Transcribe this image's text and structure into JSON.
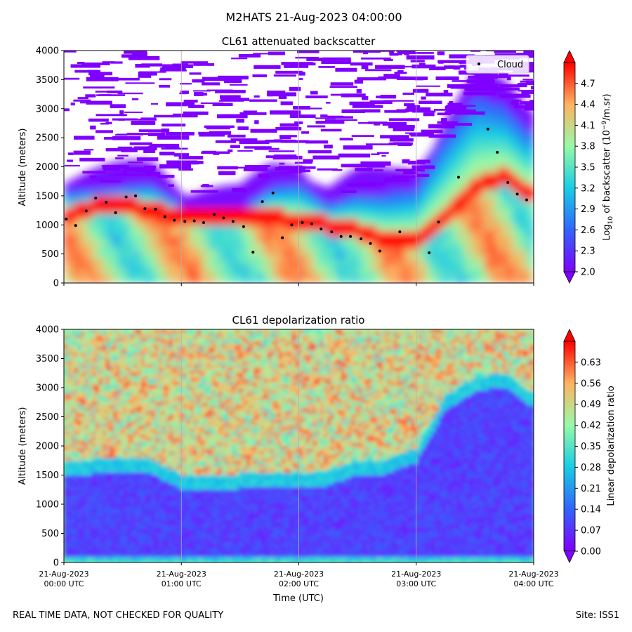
{
  "suptitle": "M2HATS 21-Aug-2023 04:00:00",
  "footer_left": "REAL TIME DATA, NOT CHECKED FOR QUALITY",
  "footer_right": "Site: ISS1",
  "chart_data": [
    {
      "type": "heatmap",
      "title": "CL61 attenuated backscatter",
      "ylabel": "Altitude (meters)",
      "ylim": [
        0,
        4000
      ],
      "yticks": [
        0,
        500,
        1000,
        1500,
        2000,
        2500,
        3000,
        3500,
        4000
      ],
      "xlim_hours": [
        0,
        4
      ],
      "x_tick_labels": [
        [
          "21-Aug-2023",
          "00:00 UTC"
        ],
        [
          "21-Aug-2023",
          "01:00 UTC"
        ],
        [
          "21-Aug-2023",
          "02:00 UTC"
        ],
        [
          "21-Aug-2023",
          "03:00 UTC"
        ],
        [
          "21-Aug-2023",
          "04:00 UTC"
        ]
      ],
      "grid": "vertical lines at hourly ticks",
      "colormap": "rainbow",
      "colorbar": {
        "label": "Log10 of backscatter (10^-9/m.sr)",
        "label_parts": [
          "Log",
          "10",
          " of backscatter (10",
          "−9",
          "/m.sr)"
        ],
        "range": [
          2.0,
          5.0
        ],
        "ticks": [
          "2.0",
          "2.3",
          "2.6",
          "2.9",
          "3.2",
          "3.5",
          "3.8",
          "4.1",
          "4.4",
          "4.7"
        ],
        "tick_values": [
          2.0,
          2.3,
          2.6,
          2.9,
          3.2,
          3.5,
          3.8,
          4.1,
          4.4,
          4.7
        ]
      },
      "legend": {
        "label": "Cloud",
        "placement": "top-right",
        "marker_color": "#000000"
      },
      "cloud_points": [
        {
          "hours": 0.02,
          "alt": 1100
        },
        {
          "hours": 0.1,
          "alt": 990
        },
        {
          "hours": 0.19,
          "alt": 1240
        },
        {
          "hours": 0.27,
          "alt": 1460
        },
        {
          "hours": 0.36,
          "alt": 1390
        },
        {
          "hours": 0.44,
          "alt": 1210
        },
        {
          "hours": 0.53,
          "alt": 1480
        },
        {
          "hours": 0.61,
          "alt": 1500
        },
        {
          "hours": 0.69,
          "alt": 1280
        },
        {
          "hours": 0.78,
          "alt": 1270
        },
        {
          "hours": 0.86,
          "alt": 1140
        },
        {
          "hours": 0.94,
          "alt": 1080
        },
        {
          "hours": 1.03,
          "alt": 1060
        },
        {
          "hours": 1.11,
          "alt": 1070
        },
        {
          "hours": 1.19,
          "alt": 1040
        },
        {
          "hours": 1.28,
          "alt": 1180
        },
        {
          "hours": 1.36,
          "alt": 1120
        },
        {
          "hours": 1.44,
          "alt": 1060
        },
        {
          "hours": 1.53,
          "alt": 970
        },
        {
          "hours": 1.61,
          "alt": 530
        },
        {
          "hours": 1.69,
          "alt": 1400
        },
        {
          "hours": 1.78,
          "alt": 1550
        },
        {
          "hours": 1.86,
          "alt": 780
        },
        {
          "hours": 1.94,
          "alt": 1000
        },
        {
          "hours": 2.03,
          "alt": 1040
        },
        {
          "hours": 2.11,
          "alt": 1020
        },
        {
          "hours": 2.19,
          "alt": 930
        },
        {
          "hours": 2.28,
          "alt": 880
        },
        {
          "hours": 2.36,
          "alt": 800
        },
        {
          "hours": 2.44,
          "alt": 800
        },
        {
          "hours": 2.53,
          "alt": 760
        },
        {
          "hours": 2.61,
          "alt": 680
        },
        {
          "hours": 2.69,
          "alt": 550
        },
        {
          "hours": 2.86,
          "alt": 880
        },
        {
          "hours": 3.11,
          "alt": 520
        },
        {
          "hours": 3.19,
          "alt": 1050
        },
        {
          "hours": 3.36,
          "alt": 1820
        },
        {
          "hours": 3.61,
          "alt": 2650
        },
        {
          "hours": 3.69,
          "alt": 2250
        },
        {
          "hours": 3.78,
          "alt": 1730
        },
        {
          "hours": 3.86,
          "alt": 1530
        },
        {
          "hours": 3.94,
          "alt": 1430
        }
      ],
      "layers": [
        {
          "name": "boundary layer top (approx. m)",
          "hours": [
            0,
            0.25,
            0.5,
            0.75,
            1,
            1.25,
            1.5,
            1.75,
            2,
            2.25,
            2.5,
            2.75,
            3,
            3.25,
            3.5,
            3.75,
            3.95
          ],
          "alt": [
            1500,
            1550,
            1600,
            1650,
            1300,
            1250,
            1200,
            1600,
            1700,
            1300,
            1500,
            1500,
            1600,
            2500,
            3200,
            3000,
            2600
          ]
        },
        {
          "name": "strong layer (approx. m)",
          "hours": [
            0,
            0.25,
            0.5,
            0.75,
            1,
            1.25,
            1.5,
            1.75,
            2,
            2.25,
            2.5,
            2.75,
            3,
            3.25,
            3.5,
            3.75,
            3.95
          ],
          "alt": [
            1100,
            1250,
            1300,
            1200,
            1100,
            1150,
            1050,
            1100,
            1000,
            950,
            850,
            700,
            700,
            1100,
            1600,
            1800,
            1500
          ]
        }
      ]
    },
    {
      "type": "heatmap",
      "title": "CL61 depolarization ratio",
      "ylabel": "Altitude (meters)",
      "xlabel": "Time (UTC)",
      "ylim": [
        0,
        4000
      ],
      "yticks": [
        0,
        500,
        1000,
        1500,
        2000,
        2500,
        3000,
        3500,
        4000
      ],
      "xlim_hours": [
        0,
        4
      ],
      "x_tick_labels": [
        [
          "21-Aug-2023",
          "00:00 UTC"
        ],
        [
          "21-Aug-2023",
          "01:00 UTC"
        ],
        [
          "21-Aug-2023",
          "02:00 UTC"
        ],
        [
          "21-Aug-2023",
          "03:00 UTC"
        ],
        [
          "21-Aug-2023",
          "04:00 UTC"
        ]
      ],
      "grid": "vertical lines at hourly ticks",
      "colormap": "rainbow",
      "colorbar": {
        "label": "Linear depolarization ratio",
        "range": [
          0.0,
          0.7
        ],
        "ticks": [
          "0.00",
          "0.07",
          "0.14",
          "0.21",
          "0.28",
          "0.35",
          "0.42",
          "0.49",
          "0.56",
          "0.63"
        ],
        "tick_values": [
          0.0,
          0.07,
          0.14,
          0.21,
          0.28,
          0.35,
          0.42,
          0.49,
          0.56,
          0.63
        ]
      },
      "layers": [
        {
          "name": "low depolarization top (approx. m)",
          "hours": [
            0,
            0.25,
            0.5,
            0.75,
            1,
            1.25,
            1.5,
            1.75,
            2,
            2.25,
            2.5,
            2.75,
            3,
            3.25,
            3.5,
            3.75,
            3.95
          ],
          "alt": [
            1450,
            1500,
            1550,
            1500,
            1250,
            1200,
            1250,
            1300,
            1300,
            1300,
            1500,
            1500,
            1700,
            2600,
            2900,
            3000,
            2700
          ]
        }
      ]
    }
  ]
}
